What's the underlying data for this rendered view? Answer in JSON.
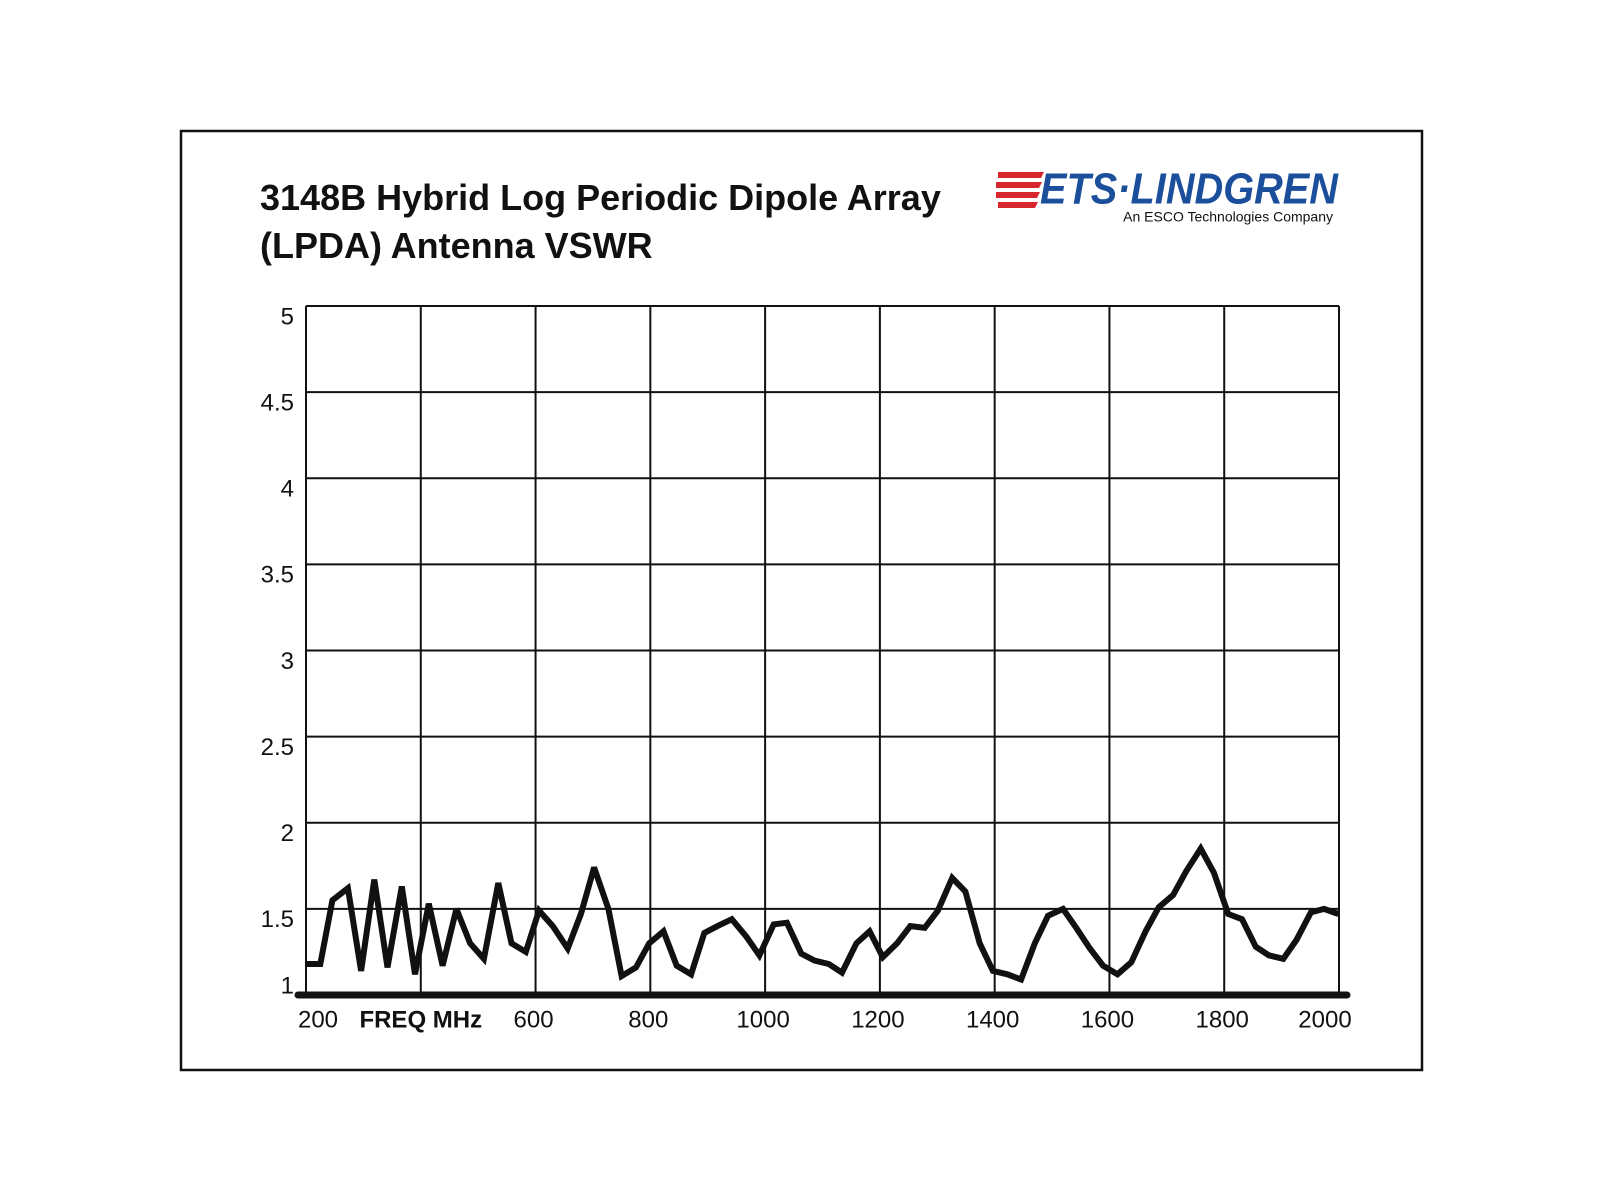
{
  "chart_data": {
    "type": "line",
    "title": [
      "3148B Hybrid Log Periodic Dipole Array",
      "(LPDA) Antenna VSWR"
    ],
    "logo": {
      "name": "ETS·LINDGREN",
      "tagline": "An ESCO Technologies Company"
    },
    "x": [
      200,
      225,
      246,
      273,
      296,
      319,
      342,
      367,
      390,
      414,
      438,
      462,
      486,
      510,
      535,
      558,
      583,
      606,
      630,
      656,
      679,
      702,
      727,
      750,
      775,
      798,
      823,
      846,
      871,
      894,
      917,
      942,
      967,
      990,
      1015,
      1038,
      1063,
      1086,
      1111,
      1134,
      1159,
      1182,
      1205,
      1230,
      1253,
      1278,
      1301,
      1326,
      1349,
      1374,
      1397,
      1422,
      1446,
      1470,
      1493,
      1519,
      1542,
      1566,
      1589,
      1614,
      1638,
      1663,
      1686,
      1711,
      1734,
      1759,
      1782,
      1807,
      1831,
      1855,
      1878,
      1903,
      1926,
      1951,
      1974,
      1999
    ],
    "values": [
      1.18,
      1.18,
      1.55,
      1.62,
      1.14,
      1.67,
      1.16,
      1.63,
      1.12,
      1.53,
      1.17,
      1.5,
      1.3,
      1.21,
      1.65,
      1.3,
      1.25,
      1.49,
      1.4,
      1.27,
      1.47,
      1.74,
      1.5,
      1.11,
      1.16,
      1.3,
      1.37,
      1.17,
      1.12,
      1.36,
      1.4,
      1.44,
      1.34,
      1.23,
      1.41,
      1.42,
      1.24,
      1.2,
      1.18,
      1.13,
      1.3,
      1.37,
      1.22,
      1.3,
      1.4,
      1.39,
      1.49,
      1.68,
      1.6,
      1.3,
      1.14,
      1.12,
      1.09,
      1.3,
      1.46,
      1.5,
      1.39,
      1.27,
      1.17,
      1.12,
      1.19,
      1.37,
      1.51,
      1.58,
      1.72,
      1.85,
      1.71,
      1.47,
      1.44,
      1.28,
      1.23,
      1.21,
      1.32,
      1.48,
      1.5,
      1.47
    ],
    "color": "#111111",
    "xlim": [
      200,
      2000
    ],
    "xticks": [
      200,
      {
        "value": 400,
        "label": "FREQ  MHz"
      },
      600,
      800,
      1000,
      1200,
      1400,
      1600,
      1800,
      2000
    ],
    "ylim": [
      1,
      5
    ],
    "yticks": [
      1,
      1.5,
      2,
      2.5,
      3,
      3.5,
      4,
      4.5,
      5
    ],
    "grid": true
  }
}
